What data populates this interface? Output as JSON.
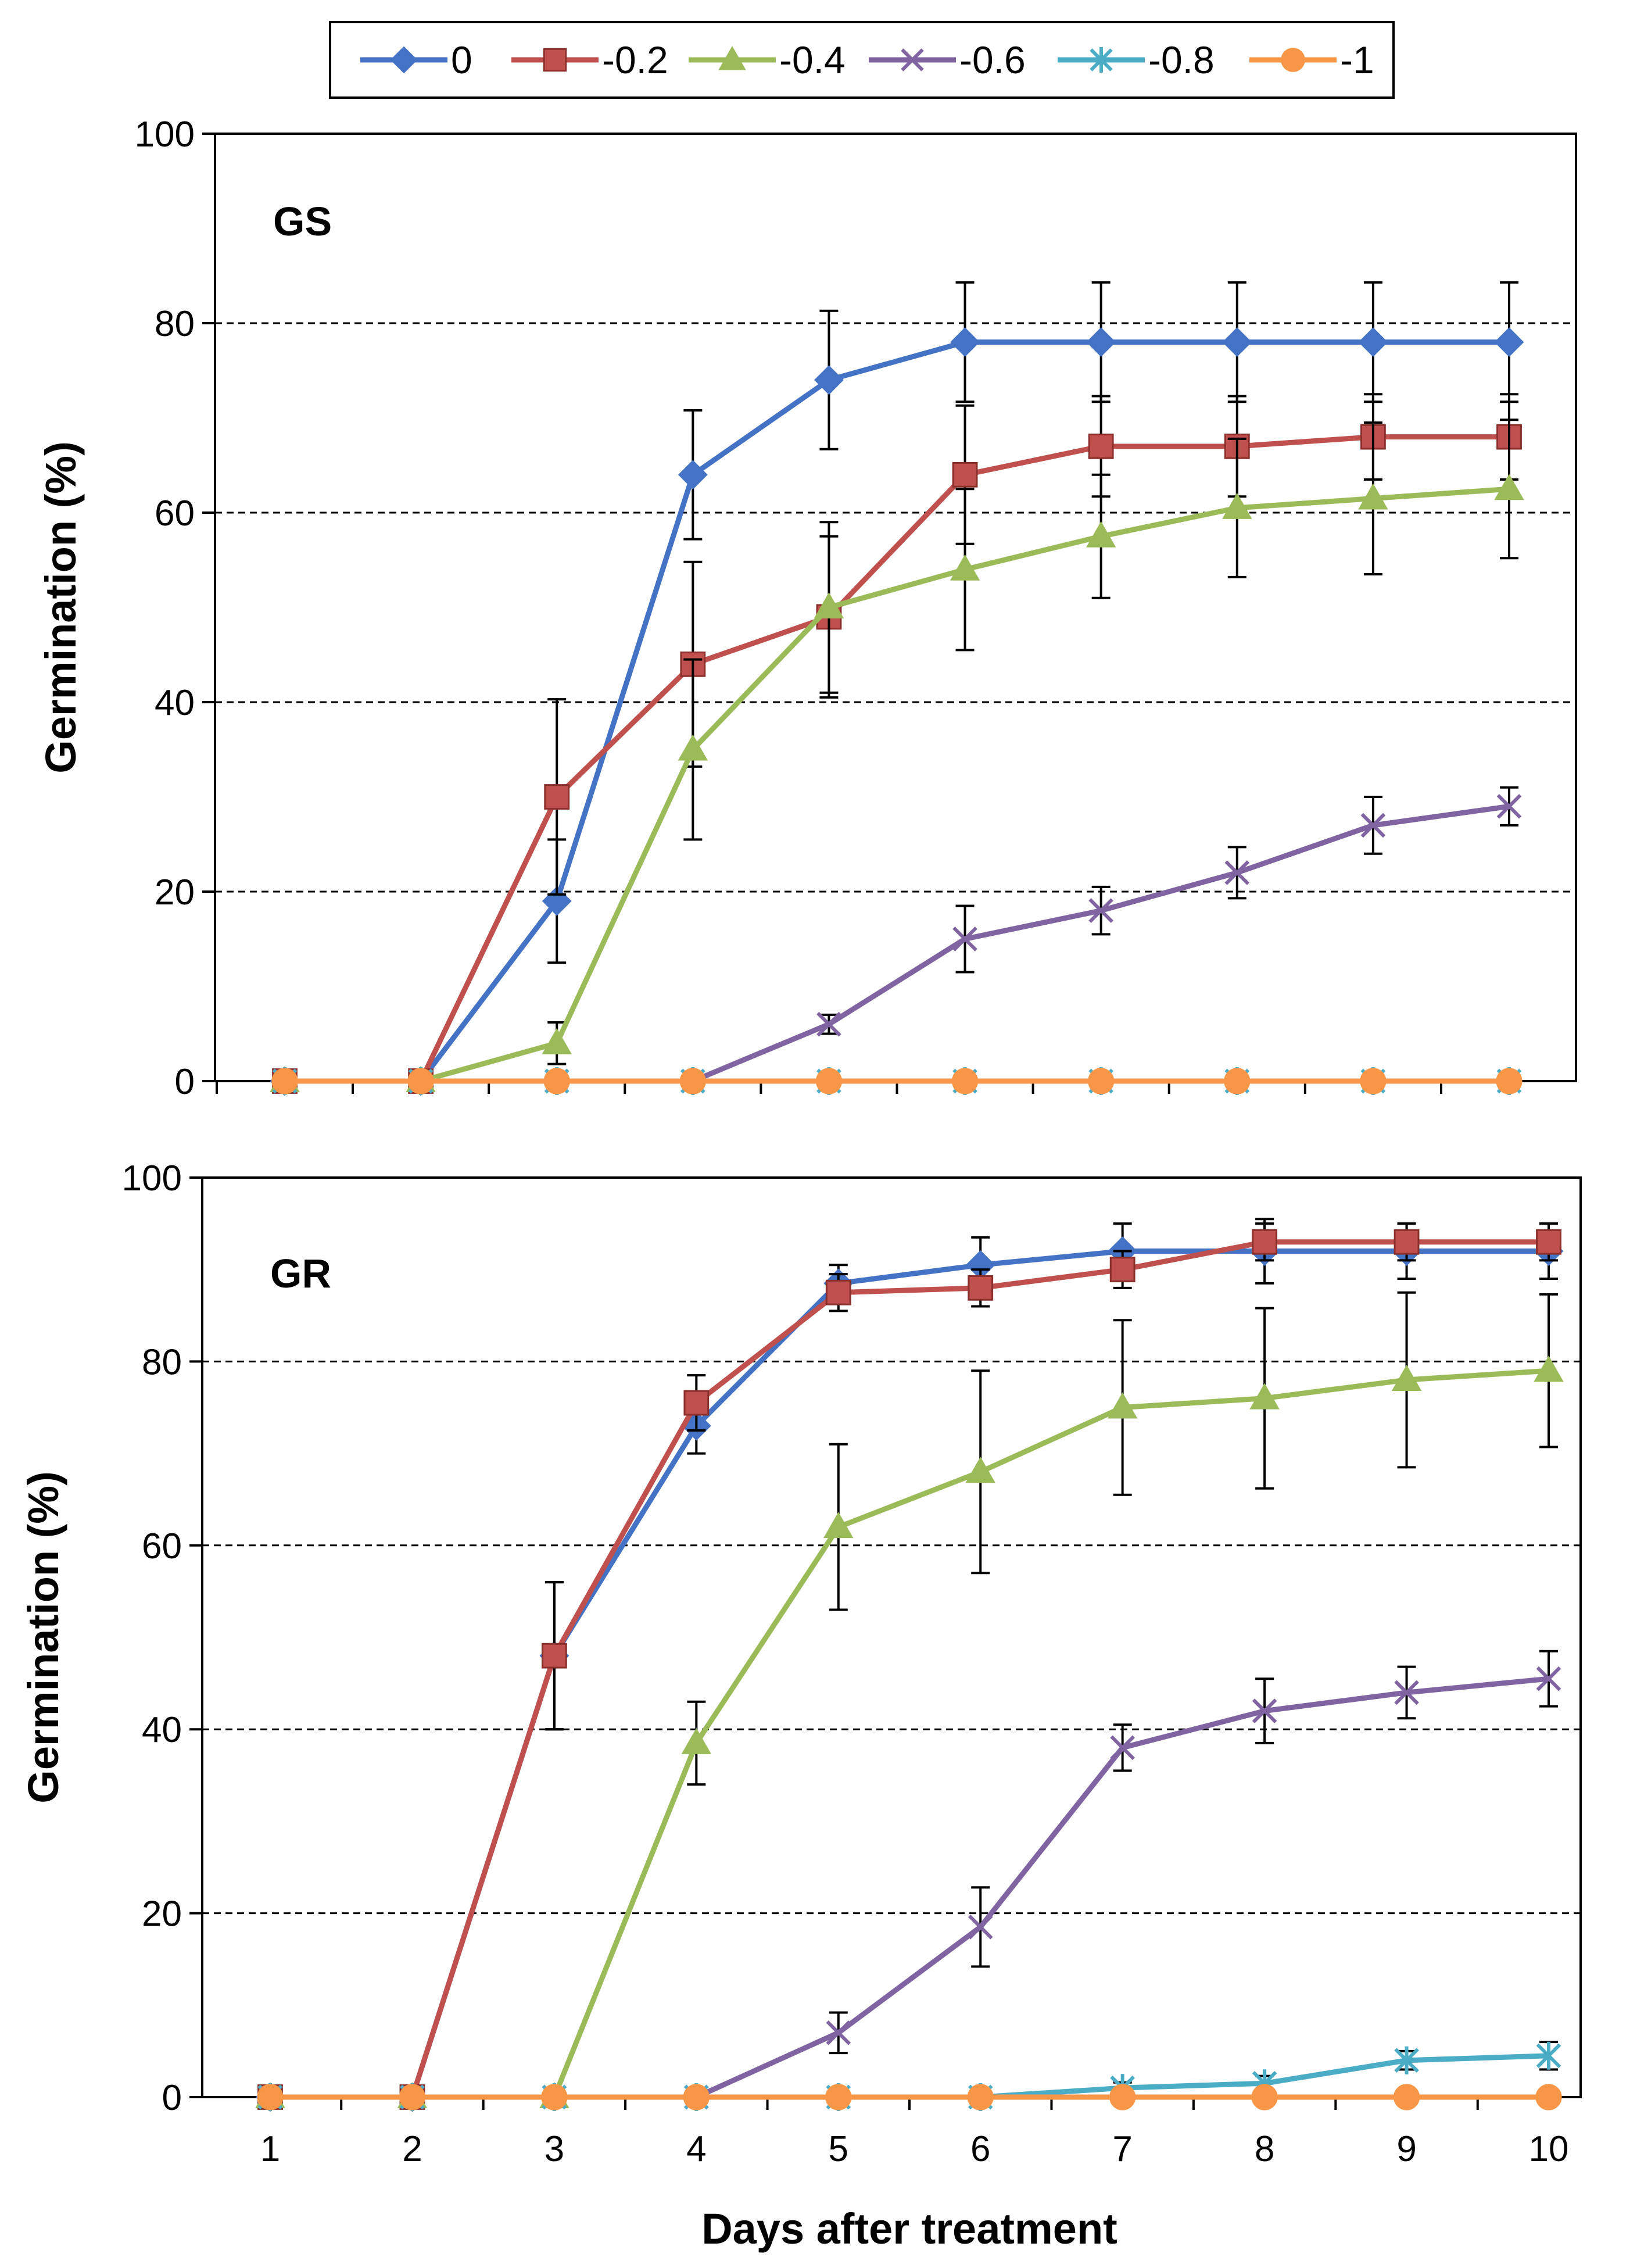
{
  "legend": {
    "entries": [
      {
        "label": "0",
        "color": "#4472C4",
        "marker": "diamond"
      },
      {
        "label": "-0.2",
        "color": "#C0504D",
        "marker": "square"
      },
      {
        "label": "-0.4",
        "color": "#9BBB59",
        "marker": "triangle"
      },
      {
        "label": "-0.6",
        "color": "#8064A2",
        "marker": "x"
      },
      {
        "label": "-0.8",
        "color": "#4BACC6",
        "marker": "star"
      },
      {
        "label": "-1",
        "color": "#F79646",
        "marker": "circle"
      }
    ]
  },
  "xlabel": "Days after treatment",
  "chart_data": [
    {
      "type": "line",
      "title": "GS",
      "ylabel": "Germination (%)",
      "xlabel": "",
      "x": [
        1,
        2,
        3,
        4,
        5,
        6,
        7,
        8,
        9,
        10
      ],
      "ylim": [
        0,
        100
      ],
      "yticks": [
        "0",
        "20",
        "40",
        "60",
        "80",
        "100"
      ],
      "xticks": [],
      "series": [
        {
          "name": "0",
          "values": [
            0,
            0,
            19,
            64,
            74,
            78,
            78,
            78,
            78,
            78
          ],
          "errors": [
            0,
            0,
            6.5,
            6.8,
            7.3,
            6.3,
            6.3,
            6.3,
            6.3,
            6.3
          ]
        },
        {
          "name": "-0.2",
          "values": [
            0,
            0,
            30,
            44,
            49,
            64,
            67,
            67,
            68,
            68
          ],
          "errors": [
            0,
            0,
            10.3,
            10.8,
            8.5,
            7.3,
            5.3,
            5.3,
            4.5,
            4.5
          ]
        },
        {
          "name": "-0.4",
          "values": [
            0,
            0,
            4,
            35,
            50,
            54,
            57.5,
            60.5,
            61.5,
            62.5
          ],
          "errors": [
            0,
            0,
            2.2,
            9.5,
            9.0,
            8.5,
            6.5,
            7.3,
            8.0,
            7.3
          ]
        },
        {
          "name": "-0.6",
          "values": [
            0,
            0,
            0,
            0,
            6,
            15,
            18,
            22,
            27,
            29
          ],
          "errors": [
            0,
            0,
            0,
            0,
            1.0,
            3.5,
            2.5,
            2.7,
            3.0,
            2.0
          ]
        },
        {
          "name": "-0.8",
          "values": [
            0,
            0,
            0,
            0,
            0,
            0,
            0,
            0,
            0,
            0
          ],
          "errors": [
            0,
            0,
            0,
            0,
            0,
            0,
            0,
            0,
            0,
            0
          ]
        },
        {
          "name": "-1",
          "values": [
            0,
            0,
            0,
            0,
            0,
            0,
            0,
            0,
            0,
            0
          ],
          "errors": [
            0,
            0,
            0,
            0,
            0,
            0,
            0,
            0,
            0,
            0
          ]
        }
      ]
    },
    {
      "type": "line",
      "title": "GR",
      "ylabel": "Germination (%)",
      "xlabel": "Days after treatment",
      "x": [
        1,
        2,
        3,
        4,
        5,
        6,
        7,
        8,
        9,
        10
      ],
      "ylim": [
        0,
        100
      ],
      "yticks": [
        "0",
        "20",
        "40",
        "60",
        "80",
        "100"
      ],
      "xticks": [
        "1",
        "2",
        "3",
        "4",
        "5",
        "6",
        "7",
        "8",
        "9",
        "10"
      ],
      "series": [
        {
          "name": "0",
          "values": [
            0,
            0,
            48,
            73,
            88.5,
            90.5,
            92,
            92,
            92,
            92
          ],
          "errors": [
            0,
            0,
            8.0,
            3.0,
            2.0,
            3.0,
            3.0,
            3.5,
            3.0,
            3.0
          ]
        },
        {
          "name": "-0.2",
          "values": [
            0,
            0,
            48,
            75.5,
            87.5,
            88,
            90,
            93,
            93,
            93
          ],
          "errors": [
            0,
            0,
            8.0,
            3.0,
            2.0,
            2.0,
            2.0,
            2.0,
            2.0,
            2.0
          ]
        },
        {
          "name": "-0.4",
          "values": [
            0,
            0,
            0,
            38.5,
            62,
            68,
            75,
            76,
            78,
            79
          ],
          "errors": [
            0,
            0,
            0,
            4.5,
            9.0,
            11.0,
            9.5,
            9.8,
            9.5,
            8.3
          ]
        },
        {
          "name": "-0.6",
          "values": [
            0,
            0,
            0,
            0,
            7,
            18.5,
            38,
            42,
            44,
            45.5
          ],
          "errors": [
            0,
            0,
            0,
            0,
            2.2,
            4.3,
            2.5,
            3.5,
            2.8,
            3.0
          ]
        },
        {
          "name": "-0.8",
          "values": [
            0,
            0,
            0,
            0,
            0,
            0,
            1,
            1.5,
            4,
            4.5
          ],
          "errors": [
            0,
            0,
            0,
            0,
            0,
            0,
            0.6,
            0.8,
            1.0,
            1.5
          ]
        },
        {
          "name": "-1",
          "values": [
            0,
            0,
            0,
            0,
            0,
            0,
            0,
            0,
            0,
            0
          ],
          "errors": [
            0,
            0,
            0,
            0,
            0,
            0,
            0,
            0,
            0,
            0
          ]
        }
      ]
    }
  ]
}
